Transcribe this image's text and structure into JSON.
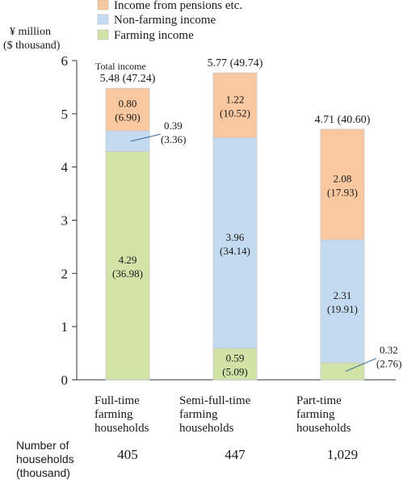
{
  "legend": [
    {
      "label": "Income from pensions etc.",
      "color": "#f9c8a0"
    },
    {
      "label": "Non-farming income",
      "color": "#c4daf0"
    },
    {
      "label": "Farming income",
      "color": "#d2e3a8"
    }
  ],
  "axis": {
    "ylabel_line1": "¥ million",
    "ylabel_line2": "($ thousand)"
  },
  "households": {
    "label_line1": "Number of",
    "label_line2": "households",
    "label_line3": "(thousand)"
  },
  "total_income_label": "Total income",
  "chart_data": {
    "type": "bar",
    "stacked": true,
    "ylim": [
      0,
      6
    ],
    "yticks": [
      "0",
      "1",
      "2",
      "3",
      "4",
      "5",
      "6"
    ],
    "categories": [
      [
        "Full-time",
        "farming",
        "households"
      ],
      [
        "Semi-full-time",
        "farming",
        "households"
      ],
      [
        "Part-time",
        "farming",
        "households"
      ]
    ],
    "series": [
      {
        "name": "Farming income",
        "color": "#d2e3a8",
        "values": [
          4.29,
          0.59,
          0.32
        ],
        "usd": [
          "(36.98)",
          "(5.09)",
          "(2.76)"
        ]
      },
      {
        "name": "Non-farming income",
        "color": "#c4daf0",
        "values": [
          0.39,
          3.96,
          2.31
        ],
        "usd": [
          "(3.36)",
          "(34.14)",
          "(19.91)"
        ]
      },
      {
        "name": "Income from pensions etc.",
        "color": "#f9c8a0",
        "values": [
          0.8,
          1.22,
          2.08
        ],
        "usd": [
          "(6.90)",
          "(10.52)",
          "(17.93)"
        ]
      }
    ],
    "value_labels": [
      [
        "4.29",
        "0.39",
        "0.80"
      ],
      [
        "0.59",
        "3.96",
        "1.22"
      ],
      [
        "0.32",
        "2.31",
        "2.08"
      ]
    ],
    "totals": [
      "5.48 (47.24)",
      "5.77 (49.74)",
      "4.71 (40.60)"
    ],
    "households": [
      "405",
      "447",
      "1,029"
    ]
  }
}
